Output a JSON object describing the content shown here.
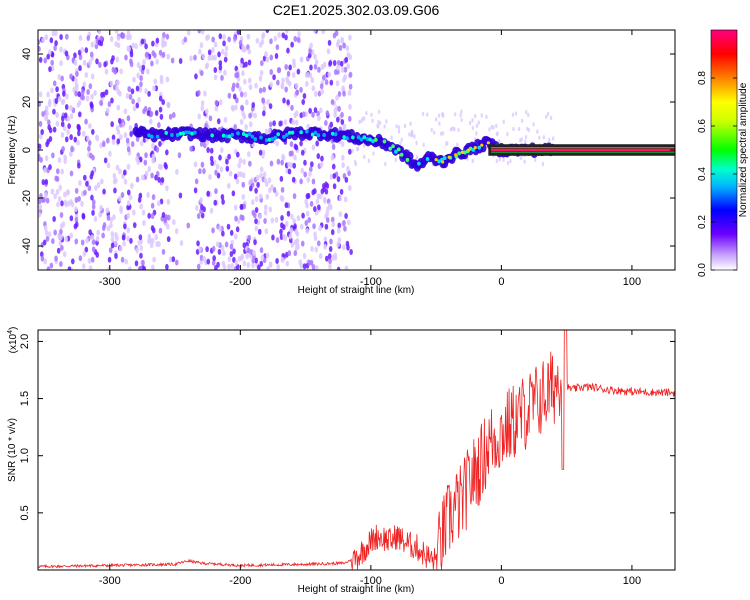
{
  "title": "C2E1.2025.302.03.09.G06",
  "chart_data": [
    {
      "type": "heatmap",
      "name": "spectrogram",
      "xlabel": "Height of straight line (km)",
      "ylabel": "Frequency (Hz)",
      "xlim": [
        -355,
        133
      ],
      "ylim": [
        -50,
        50
      ],
      "xticks": [
        -300,
        -200,
        -100,
        0,
        100
      ],
      "xtick_labels": [
        "-300",
        "-200",
        "-100",
        "0",
        "100"
      ],
      "yticks": [
        40,
        20,
        0,
        -20,
        -40
      ],
      "ytick_labels": [
        "40",
        "20",
        "0",
        "-20",
        "-40"
      ],
      "ridge": {
        "description": "dominant frequency track vs height",
        "x": [
          -280,
          -260,
          -240,
          -220,
          -200,
          -180,
          -160,
          -140,
          -120,
          -100,
          -90,
          -80,
          -70,
          -65,
          -60,
          -55,
          -50,
          -45,
          -40,
          -35,
          -30,
          -25,
          -20,
          -15,
          -10,
          -5,
          0,
          10,
          20,
          30,
          40,
          133
        ],
        "y": [
          7,
          6,
          7,
          6,
          6,
          5,
          7,
          7,
          6,
          4,
          3,
          0,
          -4,
          -7,
          -5,
          -3,
          -4,
          -5,
          -3,
          -2,
          -1,
          0,
          1,
          2,
          3,
          1,
          0,
          0,
          0,
          0,
          0,
          0
        ]
      },
      "colorbar": {
        "label": "Normalized spectral amplitude",
        "range": [
          0,
          1
        ],
        "ticks": [
          0.0,
          0.2,
          0.4,
          0.6,
          0.8
        ],
        "tick_labels": [
          "0.0",
          "0.2",
          "0.4",
          "0.6",
          "0.8"
        ],
        "colors": [
          "#ffffff",
          "#6a00ff",
          "#0000ff",
          "#00ffff",
          "#00ff00",
          "#ffff00",
          "#ff8000",
          "#ff0000",
          "#ff0080"
        ]
      }
    },
    {
      "type": "line",
      "name": "snr",
      "xlabel": "Height of straight line (km)",
      "ylabel": "SNR (10 * v/v)",
      "scale_note": "(x10",
      "scale_exp": "4",
      "scale_suffix": ")",
      "xlim": [
        -355,
        133
      ],
      "ylim": [
        0,
        2.1
      ],
      "xticks": [
        -300,
        -200,
        -100,
        0,
        100
      ],
      "xtick_labels": [
        "-300",
        "-200",
        "-100",
        "0",
        "100"
      ],
      "yticks": [
        0.5,
        1.0,
        1.5,
        2.0
      ],
      "ytick_labels": [
        "0.5",
        "1.0",
        "1.5",
        "2.0"
      ],
      "color": "#ee2222",
      "series": [
        {
          "name": "SNR",
          "x": [
            -355,
            -300,
            -250,
            -240,
            -230,
            -200,
            -150,
            -120,
            -110,
            -100,
            -95,
            -90,
            -85,
            -80,
            -75,
            -70,
            -65,
            -60,
            -55,
            -50,
            -45,
            -40,
            -35,
            -30,
            -25,
            -20,
            -15,
            -10,
            -5,
            0,
            5,
            10,
            15,
            20,
            25,
            30,
            35,
            40,
            45,
            50,
            55,
            60,
            70,
            80,
            100,
            133
          ],
          "y": [
            0.03,
            0.04,
            0.05,
            0.08,
            0.06,
            0.04,
            0.05,
            0.06,
            0.12,
            0.25,
            0.3,
            0.28,
            0.25,
            0.3,
            0.25,
            0.22,
            0.2,
            0.15,
            0.1,
            0.08,
            0.3,
            0.45,
            0.55,
            0.6,
            0.75,
            0.85,
            0.95,
            1.1,
            1.15,
            1.2,
            1.25,
            1.3,
            1.35,
            1.4,
            1.45,
            1.5,
            1.55,
            1.6,
            1.7,
            1.6,
            1.58,
            1.6,
            1.6,
            1.58,
            1.56,
            1.55
          ]
        }
      ]
    }
  ]
}
